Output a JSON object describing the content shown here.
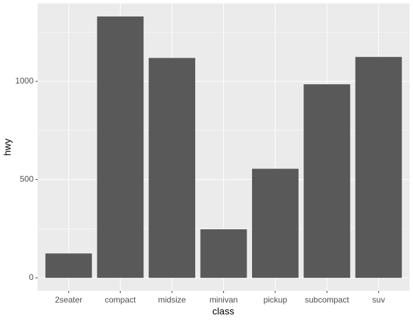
{
  "chart_data": {
    "type": "bar",
    "x_label": "class",
    "y_label": "hwy",
    "categories": [
      "2seater",
      "compact",
      "midsize",
      "minivan",
      "pickup",
      "subcompact",
      "suv"
    ],
    "values": [
      124,
      1330,
      1119,
      247,
      555,
      985,
      1124
    ],
    "color": "#595959",
    "ylim": [
      -66.5,
      1396.5
    ],
    "yticks": [
      0,
      500,
      1000
    ],
    "minor_yticks": [
      250,
      750,
      1250
    ],
    "grid": true
  }
}
